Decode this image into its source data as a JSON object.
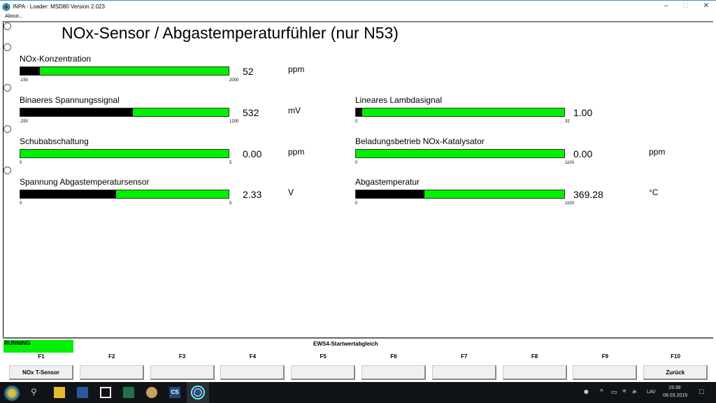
{
  "window": {
    "title": "INPA - Loader:  MSD80 Version 2.023",
    "menu": "About..."
  },
  "page_title": "NOx-Sensor / Abgastemperaturfühler (nur N53)",
  "gauges": [
    {
      "label": "NOx-Konzentration",
      "min": "-150",
      "max": "2000",
      "value": "52",
      "unit": "ppm",
      "fill": 0.093
    },
    {
      "label": "Binaeres Spannungssignal",
      "min": "-250",
      "max": "1200",
      "value": "532",
      "unit": "mV",
      "fill": 0.54
    },
    {
      "label": "Schubabschaltung",
      "min": "0",
      "max": "5",
      "value": "0.00",
      "unit": "ppm",
      "fill": 0
    },
    {
      "label": "Spannung Abgastemperatursensor",
      "min": "0",
      "max": "5",
      "value": "2.33",
      "unit": "V",
      "fill": 0.46
    },
    {
      "label": "Lineares Lambdasignal",
      "min": "0",
      "max": "32",
      "value": "1.00",
      "unit": "",
      "fill": 0.03
    },
    {
      "label": "Beladungsbetrieb NOx-Katalysator",
      "min": "0",
      "max": "1100",
      "value": "0.00",
      "unit": "ppm",
      "fill": 0
    },
    {
      "label": "Abgastemperatur",
      "min": "0",
      "max": "1100",
      "value": "369.28",
      "unit": "°C",
      "fill": 0.33
    }
  ],
  "status": {
    "state": "RUNNING",
    "message": "EWS4-Startwertabgleich",
    "state_color": "#00f000"
  },
  "fkeys": [
    {
      "key": "F1",
      "label": "NOx T-Sensor"
    },
    {
      "key": "F2",
      "label": ""
    },
    {
      "key": "F3",
      "label": ""
    },
    {
      "key": "F4",
      "label": ""
    },
    {
      "key": "F5",
      "label": ""
    },
    {
      "key": "F6",
      "label": ""
    },
    {
      "key": "F7",
      "label": ""
    },
    {
      "key": "F8",
      "label": ""
    },
    {
      "key": "F9",
      "label": ""
    },
    {
      "key": "F10",
      "label": "Zurück"
    }
  ],
  "taskbar": {
    "lang": "LAV",
    "time": "19:38",
    "date": "08.03.2019"
  }
}
